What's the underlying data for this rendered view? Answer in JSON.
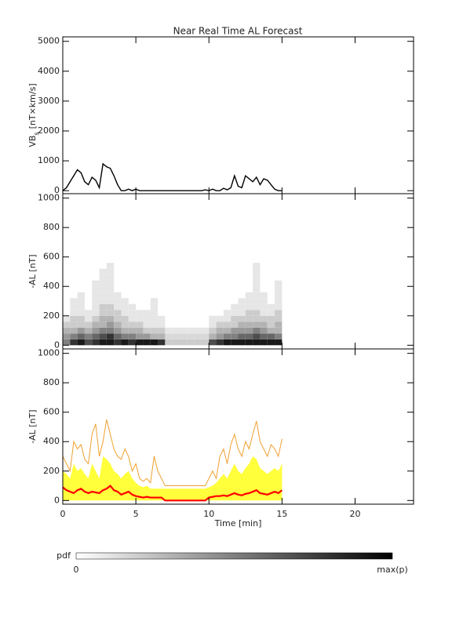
{
  "chart_data": [
    {
      "type": "line",
      "title": "Near Real Time AL Forecast",
      "y_label": {
        "main": "VB",
        "sub": "s",
        "rest": "[nT×km/s]"
      },
      "xlim": [
        0,
        24
      ],
      "xticks": [
        0,
        5,
        10,
        15,
        20
      ],
      "ylim": [
        -100,
        5150
      ],
      "yticks": [
        0,
        1000,
        2000,
        3000,
        4000,
        5000
      ],
      "x": [
        0,
        0.25,
        0.5,
        0.75,
        1,
        1.25,
        1.5,
        1.75,
        2,
        2.25,
        2.5,
        2.75,
        3,
        3.25,
        3.5,
        3.75,
        4,
        4.25,
        4.5,
        4.75,
        5,
        5.25,
        5.5,
        5.75,
        6,
        6.25,
        6.5,
        6.75,
        7,
        7.25,
        7.5,
        7.75,
        8,
        8.25,
        8.5,
        8.75,
        9,
        9.25,
        9.5,
        9.75,
        10,
        10.25,
        10.5,
        10.75,
        11,
        11.25,
        11.5,
        11.75,
        12,
        12.25,
        12.5,
        12.75,
        13,
        13.25,
        13.5,
        13.75,
        14,
        14.25,
        14.5,
        14.75,
        15
      ],
      "series": [
        {
          "color": "#000000",
          "style": "line",
          "values": [
            0,
            100,
            300,
            500,
            700,
            600,
            300,
            200,
            450,
            350,
            100,
            900,
            800,
            750,
            500,
            200,
            0,
            0,
            50,
            0,
            50,
            0,
            0,
            0,
            0,
            0,
            0,
            0,
            0,
            0,
            0,
            0,
            0,
            0,
            0,
            0,
            0,
            0,
            0,
            30,
            0,
            50,
            0,
            0,
            80,
            30,
            100,
            500,
            150,
            100,
            500,
            400,
            300,
            450,
            200,
            400,
            350,
            200,
            50,
            0,
            0
          ]
        }
      ]
    },
    {
      "type": "heatmap",
      "y_label": "-AL [nT]",
      "xlim": [
        0,
        24
      ],
      "xticks": [
        0,
        5,
        10,
        15,
        20
      ],
      "ylim": [
        -25,
        1030
      ],
      "yticks": [
        0,
        200,
        400,
        600,
        800,
        1000
      ],
      "xbins": [
        0,
        0.5,
        1,
        1.5,
        2,
        2.5,
        3,
        3.5,
        4,
        4.5,
        5,
        5.5,
        6,
        6.5,
        7,
        7.5,
        8,
        8.5,
        9,
        9.5,
        10,
        10.5,
        11,
        11.5,
        12,
        12.5,
        13,
        13.5,
        14,
        14.5,
        15
      ],
      "ybins": [
        0,
        40,
        80,
        120,
        160,
        200,
        240,
        280,
        320,
        360,
        400,
        440,
        480,
        520,
        560
      ],
      "z": [
        [
          0.5,
          0.4,
          0.3,
          0.2,
          0.1,
          0,
          0,
          0,
          0,
          0,
          0,
          0,
          0,
          0
        ],
        [
          0.8,
          0.5,
          0.3,
          0.2,
          0.2,
          0.1,
          0.1,
          0.1,
          0,
          0,
          0,
          0,
          0,
          0
        ],
        [
          0.9,
          0.6,
          0.4,
          0.2,
          0.2,
          0.1,
          0.1,
          0.1,
          0.1,
          0,
          0,
          0,
          0,
          0
        ],
        [
          0.7,
          0.5,
          0.3,
          0.2,
          0.1,
          0.1,
          0,
          0,
          0,
          0,
          0,
          0,
          0,
          0
        ],
        [
          0.8,
          0.6,
          0.4,
          0.3,
          0.2,
          0.1,
          0.1,
          0.1,
          0.1,
          0.1,
          0.1,
          0,
          0,
          0
        ],
        [
          0.9,
          0.7,
          0.5,
          0.3,
          0.3,
          0.2,
          0.2,
          0.1,
          0.1,
          0.1,
          0.1,
          0.1,
          0.1,
          0
        ],
        [
          0.9,
          0.8,
          0.5,
          0.4,
          0.3,
          0.2,
          0.2,
          0.1,
          0.1,
          0.1,
          0.1,
          0.1,
          0.1,
          0.1
        ],
        [
          0.8,
          0.6,
          0.4,
          0.3,
          0.2,
          0.2,
          0.1,
          0.1,
          0.1,
          0,
          0,
          0,
          0,
          0
        ],
        [
          0.9,
          0.5,
          0.3,
          0.2,
          0.2,
          0.1,
          0.1,
          0.1,
          0,
          0,
          0,
          0,
          0,
          0
        ],
        [
          0.8,
          0.5,
          0.3,
          0.2,
          0.1,
          0.1,
          0.1,
          0,
          0,
          0,
          0,
          0,
          0,
          0
        ],
        [
          0.9,
          0.4,
          0.3,
          0.2,
          0.1,
          0.1,
          0,
          0,
          0,
          0,
          0,
          0,
          0,
          0
        ],
        [
          0.9,
          0.4,
          0.2,
          0.1,
          0.1,
          0.1,
          0,
          0,
          0,
          0,
          0,
          0,
          0,
          0
        ],
        [
          0.9,
          0.3,
          0.2,
          0.1,
          0.1,
          0.1,
          0.1,
          0.1,
          0,
          0,
          0,
          0,
          0,
          0
        ],
        [
          0.8,
          0.3,
          0.2,
          0.1,
          0.1,
          0,
          0,
          0,
          0,
          0,
          0,
          0,
          0,
          0
        ],
        [
          0.2,
          0.15,
          0.1,
          0,
          0,
          0,
          0,
          0,
          0,
          0,
          0,
          0,
          0,
          0
        ],
        [
          0.2,
          0.15,
          0.1,
          0,
          0,
          0,
          0,
          0,
          0,
          0,
          0,
          0,
          0,
          0
        ],
        [
          0.2,
          0.15,
          0.1,
          0,
          0,
          0,
          0,
          0,
          0,
          0,
          0,
          0,
          0,
          0
        ],
        [
          0.2,
          0.15,
          0.1,
          0,
          0,
          0,
          0,
          0,
          0,
          0,
          0,
          0,
          0,
          0
        ],
        [
          0.2,
          0.15,
          0.1,
          0,
          0,
          0,
          0,
          0,
          0,
          0,
          0,
          0,
          0,
          0
        ],
        [
          0.2,
          0.15,
          0.1,
          0,
          0,
          0,
          0,
          0,
          0,
          0,
          0,
          0,
          0,
          0
        ],
        [
          0.7,
          0.3,
          0.2,
          0.1,
          0.1,
          0,
          0,
          0,
          0,
          0,
          0,
          0,
          0,
          0
        ],
        [
          0.8,
          0.4,
          0.3,
          0.2,
          0.1,
          0,
          0,
          0,
          0,
          0,
          0,
          0,
          0,
          0
        ],
        [
          0.9,
          0.5,
          0.3,
          0.2,
          0.1,
          0.1,
          0,
          0,
          0,
          0,
          0,
          0,
          0,
          0
        ],
        [
          0.9,
          0.5,
          0.4,
          0.2,
          0.2,
          0.1,
          0.1,
          0,
          0,
          0,
          0,
          0,
          0,
          0
        ],
        [
          0.9,
          0.6,
          0.4,
          0.3,
          0.2,
          0.1,
          0.1,
          0.1,
          0,
          0,
          0,
          0,
          0,
          0
        ],
        [
          0.9,
          0.6,
          0.4,
          0.3,
          0.2,
          0.2,
          0.1,
          0.1,
          0.1,
          0,
          0,
          0,
          0,
          0
        ],
        [
          0.9,
          0.7,
          0.5,
          0.3,
          0.2,
          0.2,
          0.1,
          0.1,
          0.1,
          0.1,
          0.1,
          0.1,
          0.1,
          0.1
        ],
        [
          0.9,
          0.6,
          0.4,
          0.3,
          0.2,
          0.1,
          0.1,
          0.1,
          0.1,
          0,
          0,
          0,
          0,
          0
        ],
        [
          0.9,
          0.6,
          0.3,
          0.2,
          0.2,
          0.1,
          0.1,
          0,
          0,
          0,
          0,
          0,
          0,
          0
        ],
        [
          0.9,
          0.5,
          0.3,
          0.3,
          0.2,
          0.2,
          0.1,
          0.1,
          0.1,
          0.1,
          0.1,
          0,
          0,
          0
        ]
      ],
      "colorbar": {
        "label": "pdf",
        "min_label": "0",
        "max_label": "max(p)"
      }
    },
    {
      "type": "line",
      "y_label": "-AL [nT]",
      "x_label": "Time [min]",
      "xlim": [
        0,
        24
      ],
      "xticks": [
        0,
        5,
        10,
        15,
        20
      ],
      "ylim": [
        -25,
        1030
      ],
      "yticks": [
        0,
        200,
        400,
        600,
        800,
        1000
      ],
      "x": [
        0,
        0.25,
        0.5,
        0.75,
        1,
        1.25,
        1.5,
        1.75,
        2,
        2.25,
        2.5,
        2.75,
        3,
        3.25,
        3.5,
        3.75,
        4,
        4.25,
        4.5,
        4.75,
        5,
        5.25,
        5.5,
        5.75,
        6,
        6.25,
        6.5,
        6.75,
        7,
        7.25,
        7.5,
        7.75,
        8,
        8.25,
        8.5,
        8.75,
        9,
        9.25,
        9.5,
        9.75,
        10,
        10.25,
        10.5,
        10.75,
        11,
        11.25,
        11.5,
        11.75,
        12,
        12.25,
        12.5,
        12.75,
        13,
        13.25,
        13.5,
        13.75,
        14,
        14.25,
        14.5,
        14.75,
        15
      ],
      "series": [
        {
          "color": "#ffff3c",
          "style": "area",
          "values": [
            200,
            180,
            150,
            250,
            200,
            220,
            180,
            150,
            250,
            200,
            150,
            300,
            280,
            250,
            200,
            180,
            150,
            180,
            200,
            150,
            120,
            100,
            90,
            100,
            80,
            80,
            80,
            80,
            80,
            80,
            80,
            80,
            80,
            80,
            80,
            80,
            80,
            80,
            80,
            80,
            90,
            100,
            120,
            150,
            180,
            150,
            200,
            250,
            200,
            180,
            220,
            250,
            300,
            280,
            220,
            200,
            180,
            200,
            220,
            200,
            250
          ]
        },
        {
          "color": "#f0a030",
          "style": "line",
          "values": [
            300,
            250,
            200,
            400,
            350,
            380,
            280,
            250,
            450,
            520,
            300,
            400,
            550,
            450,
            350,
            300,
            280,
            350,
            300,
            200,
            250,
            150,
            130,
            150,
            120,
            300,
            200,
            150,
            100,
            100,
            100,
            100,
            100,
            100,
            100,
            100,
            100,
            100,
            100,
            100,
            150,
            200,
            150,
            300,
            350,
            250,
            380,
            450,
            350,
            300,
            400,
            350,
            450,
            540,
            400,
            350,
            300,
            380,
            350,
            300,
            420
          ]
        },
        {
          "color": "#ff0000",
          "style": "bold",
          "values": [
            90,
            70,
            60,
            50,
            70,
            80,
            60,
            50,
            60,
            55,
            50,
            70,
            80,
            100,
            70,
            60,
            40,
            50,
            60,
            40,
            30,
            25,
            20,
            25,
            20,
            20,
            20,
            20,
            0,
            0,
            0,
            0,
            0,
            0,
            0,
            0,
            0,
            0,
            0,
            0,
            20,
            25,
            30,
            30,
            35,
            30,
            40,
            50,
            40,
            35,
            45,
            50,
            60,
            70,
            50,
            45,
            40,
            50,
            60,
            50,
            70
          ]
        }
      ]
    }
  ]
}
